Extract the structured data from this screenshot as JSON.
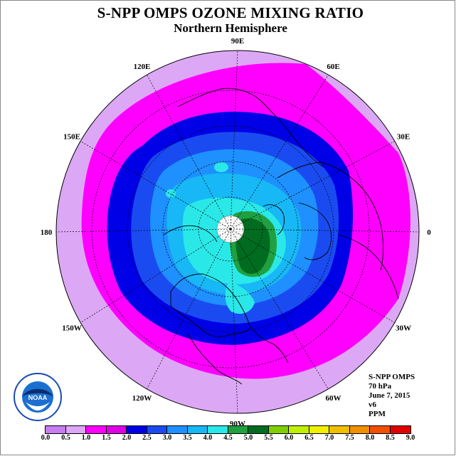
{
  "title": "S-NPP OMPS OZONE MIXING RATIO",
  "subtitle": "Northern Hemisphere",
  "longitude_labels": [
    {
      "text": "90E",
      "angle_deg": 90
    },
    {
      "text": "60E",
      "angle_deg": 60
    },
    {
      "text": "30E",
      "angle_deg": 30
    },
    {
      "text": "0",
      "angle_deg": 0
    },
    {
      "text": "30W",
      "angle_deg": -30
    },
    {
      "text": "60W",
      "angle_deg": -60
    },
    {
      "text": "90W",
      "angle_deg": -90
    },
    {
      "text": "120W",
      "angle_deg": -120
    },
    {
      "text": "150W",
      "angle_deg": -150
    },
    {
      "text": "180",
      "angle_deg": 180
    },
    {
      "text": "150E",
      "angle_deg": 150
    },
    {
      "text": "120E",
      "angle_deg": 120
    }
  ],
  "info": {
    "instrument": "S-NPP OMPS",
    "level": "70 hPa",
    "date": "June 7, 2015",
    "version": "v6",
    "units": "PPM"
  },
  "logo": {
    "name": "NOAA",
    "ring_text": "NATIONAL OCEANIC AND ATMOSPHERIC ADMINISTRATION · U.S. DEPARTMENT OF COMMERCE"
  },
  "colorbar": {
    "labels": [
      "0.0",
      "0.5",
      "1.0",
      "1.5",
      "2.0",
      "2.5",
      "3.0",
      "3.5",
      "4.0",
      "4.5",
      "5.0",
      "5.5",
      "6.0",
      "6.5",
      "7.0",
      "7.5",
      "8.0",
      "8.5",
      "9.0"
    ],
    "colors": [
      "#c77cf0",
      "#dca8f5",
      "#ff00ff",
      "#e000e6",
      "#0000e6",
      "#1a4bf0",
      "#1e90ff",
      "#17b8f5",
      "#2ae8e8",
      "#20a040",
      "#006c20",
      "#80d000",
      "#c0f000",
      "#f0f000",
      "#f0c000",
      "#f09000",
      "#f05000",
      "#e00000",
      "#8b4513"
    ]
  },
  "map": {
    "field_colors": {
      "outer": "#dca8f5",
      "magenta": "#ff00ff",
      "blue_dark": "#0000e6",
      "blue_mid": "#1a4bf0",
      "blue_light": "#1e90ff",
      "cyan": "#17b8f5",
      "aqua": "#2ae8e8",
      "green": "#20a040",
      "dark_green": "#006c20",
      "pole_hole": "#ffffff"
    }
  }
}
